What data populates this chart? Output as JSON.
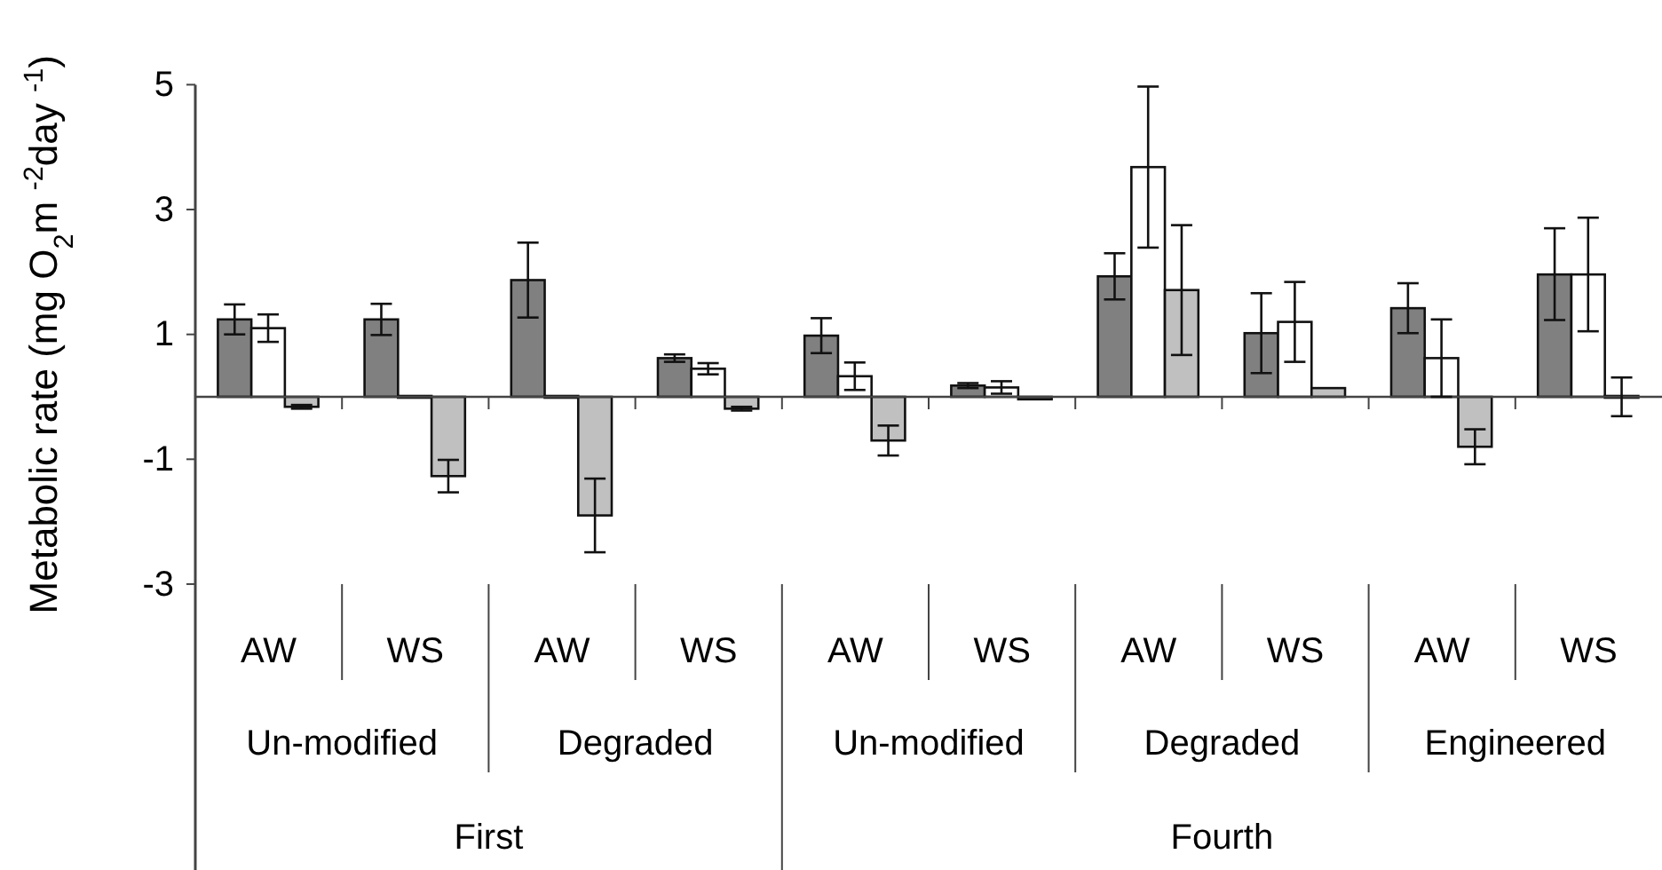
{
  "chart_data": {
    "type": "bar",
    "ylabel": "Metabolic rate (mg O$_{2}$m $^{-2}$day $^{-1}$)",
    "categories": [
      "AW",
      "WS",
      "AW",
      "WS",
      "AW",
      "WS",
      "AW",
      "WS",
      "AW",
      "WS"
    ],
    "series": [
      {
        "color": "#808080",
        "values": [
          1.24,
          1.24,
          1.87,
          0.62,
          0.98,
          0.18,
          1.93,
          1.02,
          1.42,
          1.96
        ],
        "errors": [
          0.24,
          0.25,
          0.6,
          0.06,
          0.28,
          0.04,
          0.37,
          0.64,
          0.4,
          [
            1.23,
            2.7
          ]
        ]
      },
      {
        "color": "#ffffff",
        "values": [
          1.1,
          0,
          0,
          0.45,
          0.33,
          0.15,
          3.68,
          1.2,
          0.62,
          1.96
        ],
        "errors": [
          0.22,
          null,
          null,
          0.09,
          0.22,
          0.1,
          1.29,
          0.64,
          0.62,
          [
            1.05,
            2.87
          ]
        ]
      },
      {
        "color": "#c0c0c0",
        "values": [
          -0.16,
          -1.27,
          -1.9,
          -0.19,
          -0.7,
          -0.04,
          1.71,
          0.14,
          -0.8,
          0
        ],
        "errors": [
          0.03,
          0.26,
          0.59,
          0.03,
          0.24,
          null,
          1.04,
          null,
          0.28,
          0.31
        ]
      }
    ],
    "annotations": [
      "Un-modified",
      "Degraded",
      "Un-modified",
      "Degraded",
      "Engineered",
      "First",
      "Fourth"
    ],
    "ylim": [
      -7.58,
      5
    ],
    "yticks": [
      -3,
      -1,
      1,
      3,
      5
    ]
  }
}
